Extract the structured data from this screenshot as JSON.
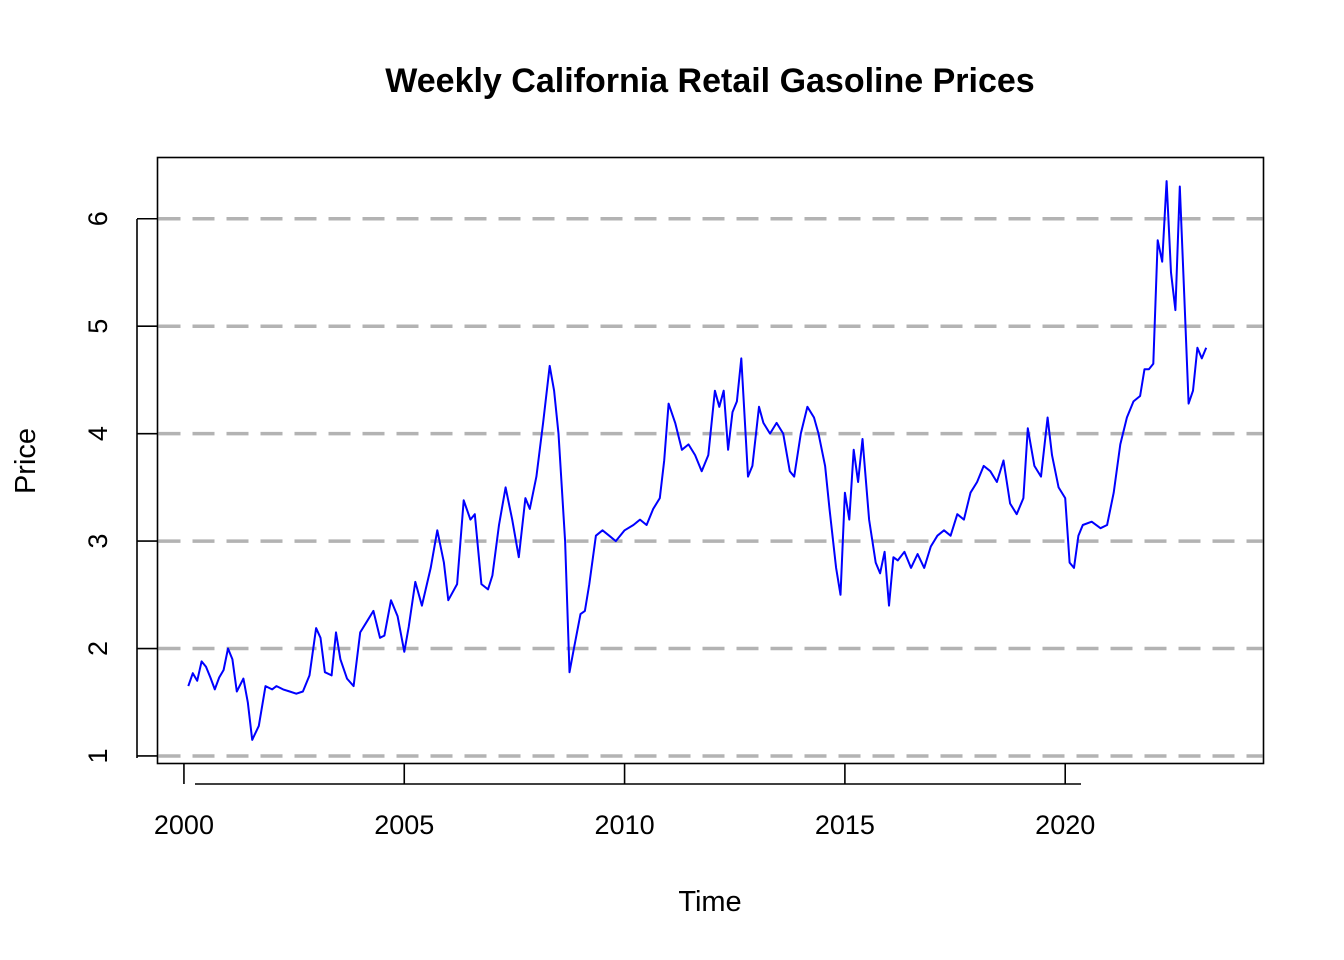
{
  "chart_data": {
    "type": "line",
    "title": "Weekly California Retail Gasoline Prices",
    "xlabel": "Time",
    "ylabel": "Price",
    "xlim": [
      1999.4,
      2024.5
    ],
    "ylim": [
      0.93,
      6.57
    ],
    "x_ticks": [
      2000,
      2005,
      2010,
      2015,
      2020
    ],
    "x_tick_labels": [
      "2000",
      "2005",
      "2010",
      "2015",
      "2020"
    ],
    "y_ticks": [
      1,
      2,
      3,
      4,
      5,
      6
    ],
    "y_tick_labels": [
      "1",
      "2",
      "3",
      "4",
      "5",
      "6"
    ],
    "grid": "horizontal dashed at y ticks",
    "grid_color": "#b3b3b3",
    "series": [
      {
        "color": "#0000ff",
        "x": [
          2000.1,
          2000.2,
          2000.3,
          2000.4,
          2000.5,
          2000.6,
          2000.7,
          2000.8,
          2000.9,
          2001.0,
          2001.1,
          2001.2,
          2001.35,
          2001.45,
          2001.55,
          2001.7,
          2001.85,
          2002.0,
          2002.1,
          2002.25,
          2002.4,
          2002.55,
          2002.7,
          2002.85,
          2003.0,
          2003.1,
          2003.2,
          2003.35,
          2003.45,
          2003.55,
          2003.7,
          2003.85,
          2004.0,
          2004.15,
          2004.3,
          2004.45,
          2004.55,
          2004.7,
          2004.85,
          2005.0,
          2005.1,
          2005.25,
          2005.4,
          2005.6,
          2005.75,
          2005.9,
          2006.0,
          2006.2,
          2006.35,
          2006.5,
          2006.6,
          2006.75,
          2006.9,
          2007.0,
          2007.15,
          2007.3,
          2007.45,
          2007.6,
          2007.75,
          2007.85,
          2008.0,
          2008.15,
          2008.3,
          2008.4,
          2008.5,
          2008.65,
          2008.75,
          2008.85,
          2009.0,
          2009.1,
          2009.2,
          2009.35,
          2009.5,
          2009.65,
          2009.8,
          2010.0,
          2010.2,
          2010.35,
          2010.5,
          2010.65,
          2010.8,
          2010.9,
          2011.0,
          2011.15,
          2011.3,
          2011.45,
          2011.6,
          2011.75,
          2011.9,
          2012.05,
          2012.15,
          2012.25,
          2012.35,
          2012.45,
          2012.55,
          2012.65,
          2012.8,
          2012.9,
          2013.05,
          2013.15,
          2013.3,
          2013.45,
          2013.6,
          2013.75,
          2013.85,
          2014.0,
          2014.15,
          2014.3,
          2014.4,
          2014.55,
          2014.65,
          2014.8,
          2014.9,
          2015.0,
          2015.1,
          2015.2,
          2015.3,
          2015.4,
          2015.55,
          2015.7,
          2015.8,
          2015.9,
          2016.0,
          2016.1,
          2016.2,
          2016.35,
          2016.5,
          2016.65,
          2016.8,
          2016.95,
          2017.1,
          2017.25,
          2017.4,
          2017.55,
          2017.7,
          2017.85,
          2018.0,
          2018.15,
          2018.3,
          2018.45,
          2018.6,
          2018.75,
          2018.9,
          2019.05,
          2019.15,
          2019.3,
          2019.45,
          2019.6,
          2019.7,
          2019.85,
          2020.0,
          2020.1,
          2020.2,
          2020.3,
          2020.4,
          2020.6,
          2020.8,
          2020.95,
          2021.1,
          2021.25,
          2021.4,
          2021.55,
          2021.7,
          2021.8,
          2021.9,
          2022.0,
          2022.1,
          2022.2,
          2022.3,
          2022.4,
          2022.5,
          2022.6,
          2022.7,
          2022.8,
          2022.9,
          2023.0,
          2023.1,
          2023.2
        ],
        "values": [
          1.65,
          1.77,
          1.7,
          1.88,
          1.83,
          1.73,
          1.62,
          1.73,
          1.8,
          2.0,
          1.9,
          1.6,
          1.72,
          1.5,
          1.15,
          1.28,
          1.65,
          1.62,
          1.65,
          1.62,
          1.6,
          1.58,
          1.6,
          1.75,
          2.19,
          2.1,
          1.78,
          1.75,
          2.15,
          1.9,
          1.72,
          1.65,
          2.15,
          2.25,
          2.35,
          2.1,
          2.12,
          2.45,
          2.3,
          1.97,
          2.2,
          2.62,
          2.4,
          2.75,
          3.1,
          2.8,
          2.45,
          2.6,
          3.38,
          3.2,
          3.25,
          2.6,
          2.55,
          2.68,
          3.15,
          3.5,
          3.2,
          2.85,
          3.4,
          3.3,
          3.6,
          4.1,
          4.63,
          4.4,
          4.0,
          3.0,
          1.78,
          2.0,
          2.32,
          2.35,
          2.6,
          3.05,
          3.1,
          3.05,
          3.0,
          3.1,
          3.15,
          3.2,
          3.15,
          3.3,
          3.4,
          3.75,
          4.28,
          4.1,
          3.85,
          3.9,
          3.8,
          3.65,
          3.8,
          4.4,
          4.25,
          4.4,
          3.85,
          4.2,
          4.3,
          4.7,
          3.6,
          3.7,
          4.25,
          4.1,
          4.0,
          4.1,
          4.0,
          3.65,
          3.6,
          4.0,
          4.25,
          4.15,
          4.0,
          3.7,
          3.3,
          2.75,
          2.5,
          3.45,
          3.2,
          3.85,
          3.55,
          3.95,
          3.2,
          2.8,
          2.7,
          2.9,
          2.4,
          2.85,
          2.82,
          2.9,
          2.75,
          2.88,
          2.75,
          2.95,
          3.05,
          3.1,
          3.05,
          3.25,
          3.2,
          3.45,
          3.55,
          3.7,
          3.65,
          3.55,
          3.75,
          3.35,
          3.25,
          3.4,
          4.05,
          3.7,
          3.6,
          4.15,
          3.8,
          3.5,
          3.4,
          2.8,
          2.75,
          3.05,
          3.15,
          3.18,
          3.12,
          3.15,
          3.45,
          3.9,
          4.15,
          4.3,
          4.35,
          4.6,
          4.6,
          4.65,
          5.8,
          5.6,
          6.35,
          5.5,
          5.15,
          6.3,
          5.3,
          4.28,
          4.4,
          4.8,
          4.7,
          4.8
        ]
      }
    ]
  }
}
